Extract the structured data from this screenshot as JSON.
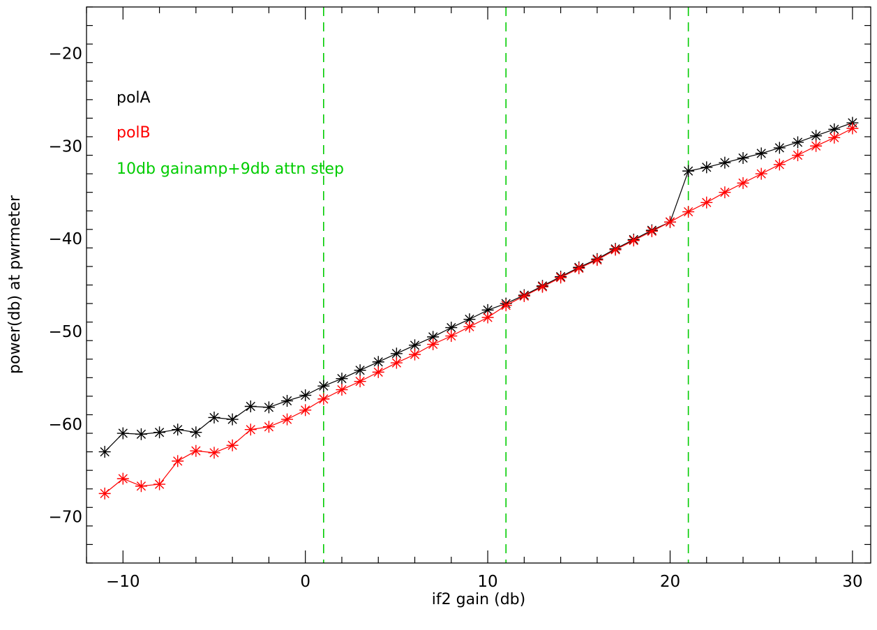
{
  "chart_data": {
    "type": "line",
    "title": "",
    "xlabel": "if2 gain (db)",
    "ylabel": "power(db) at pwrmeter",
    "xlim": [
      -12,
      31
    ],
    "ylim": [
      -75,
      -15
    ],
    "x_ticks": [
      -10,
      0,
      10,
      20,
      30
    ],
    "y_ticks": [
      -70,
      -60,
      -50,
      -40,
      -30,
      -20
    ],
    "x_tick_labels": [
      "−10",
      "0",
      "10",
      "20",
      "30"
    ],
    "y_tick_labels": [
      "−70",
      "−60",
      "−50",
      "−40",
      "−30",
      "−20"
    ],
    "grid": false,
    "legend_placement": "top-left",
    "x": [
      -11,
      -10,
      -9,
      -8,
      -7,
      -6,
      -5,
      -4,
      -3,
      -2,
      -1,
      0,
      1,
      2,
      3,
      4,
      5,
      6,
      7,
      8,
      9,
      10,
      11,
      12,
      13,
      14,
      15,
      16,
      17,
      18,
      19,
      20,
      21,
      22,
      23,
      24,
      25,
      26,
      27,
      28,
      29,
      30
    ],
    "series": [
      {
        "name": "polA",
        "color": "#000000",
        "marker": "asterisk",
        "values": [
          -63.0,
          -61.0,
          -61.1,
          -60.9,
          -60.6,
          -60.9,
          -59.3,
          -59.5,
          -58.1,
          -58.2,
          -57.5,
          -56.9,
          -55.9,
          -55.1,
          -54.2,
          -53.3,
          -52.4,
          -51.5,
          -50.6,
          -49.6,
          -48.7,
          -47.7,
          -47.0,
          -46.1,
          -45.1,
          -44.1,
          -43.1,
          -42.2,
          -41.1,
          -40.1,
          -39.1,
          -38.2,
          -32.7,
          -32.3,
          -31.8,
          -31.3,
          -30.8,
          -30.2,
          -29.6,
          -28.9,
          -28.2,
          -27.5
        ]
      },
      {
        "name": "polB",
        "color": "#ff0000",
        "marker": "asterisk",
        "values": [
          -67.5,
          -65.9,
          -66.7,
          -66.5,
          -64.0,
          -62.9,
          -63.1,
          -62.3,
          -60.6,
          -60.3,
          -59.5,
          -58.5,
          -57.3,
          -56.3,
          -55.4,
          -54.4,
          -53.4,
          -52.5,
          -51.4,
          -50.5,
          -49.5,
          -48.5,
          -47.2,
          -46.2,
          -45.2,
          -44.2,
          -43.2,
          -42.3,
          -41.2,
          -40.2,
          -39.2,
          -38.2,
          -37.1,
          -36.1,
          -35.0,
          -34.0,
          -33.0,
          -32.0,
          -31.0,
          -30.0,
          -29.1,
          -28.1
        ]
      }
    ],
    "vlines": [
      {
        "x": 1,
        "color": "#00cc00",
        "style": "dashed"
      },
      {
        "x": 11,
        "color": "#00cc00",
        "style": "dashed"
      },
      {
        "x": 21,
        "color": "#00cc00",
        "style": "dashed"
      }
    ],
    "annotations": [
      {
        "text": "polA",
        "color": "#000000"
      },
      {
        "text": "polB",
        "color": "#ff0000"
      },
      {
        "text": "10db gainamp+9db attn step",
        "color": "#00cc00"
      }
    ]
  }
}
